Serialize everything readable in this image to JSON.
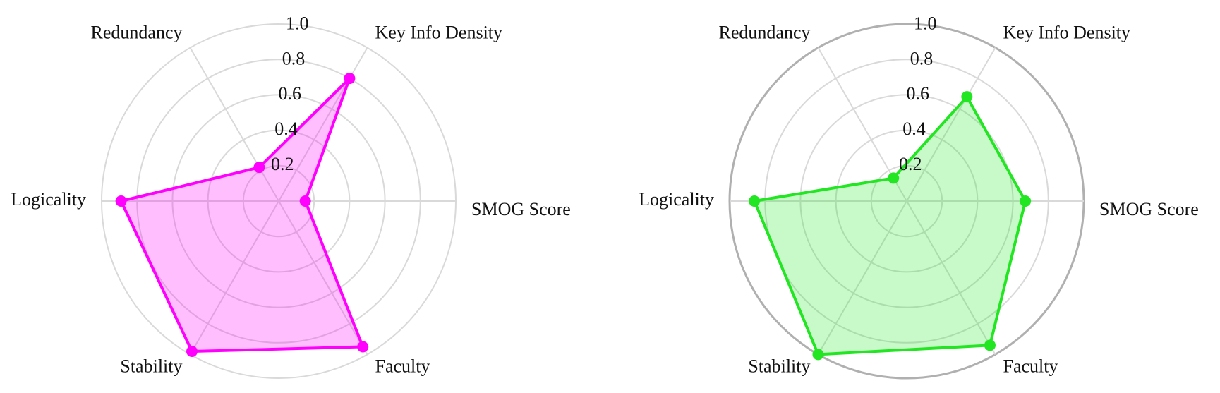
{
  "chart_data": [
    {
      "type": "radar",
      "categories": [
        "SMOG Score",
        "Key Info Density",
        "Redundancy",
        "Logicality",
        "Stability",
        "Faculty"
      ],
      "values": [
        0.15,
        0.8,
        0.22,
        0.89,
        0.98,
        0.95
      ],
      "color": "#ff00ff",
      "rlim": [
        0,
        1
      ],
      "rticks": [
        0.2,
        0.4,
        0.6,
        0.8,
        {
          "value": 1,
          "label": "1.0"
        }
      ],
      "grid": true,
      "outer_ring": false
    },
    {
      "type": "radar",
      "categories": [
        "SMOG Score",
        "Key Info Density",
        "Redundancy",
        "Logicality",
        "Stability",
        "Faculty"
      ],
      "values": [
        0.67,
        0.68,
        0.15,
        0.86,
        1.0,
        0.94
      ],
      "color": "#22e622",
      "rlim": [
        0,
        1
      ],
      "rticks": [
        0.2,
        0.4,
        0.6,
        0.8,
        {
          "value": 1,
          "label": "1.0"
        }
      ],
      "grid": true,
      "outer_ring": true
    }
  ]
}
